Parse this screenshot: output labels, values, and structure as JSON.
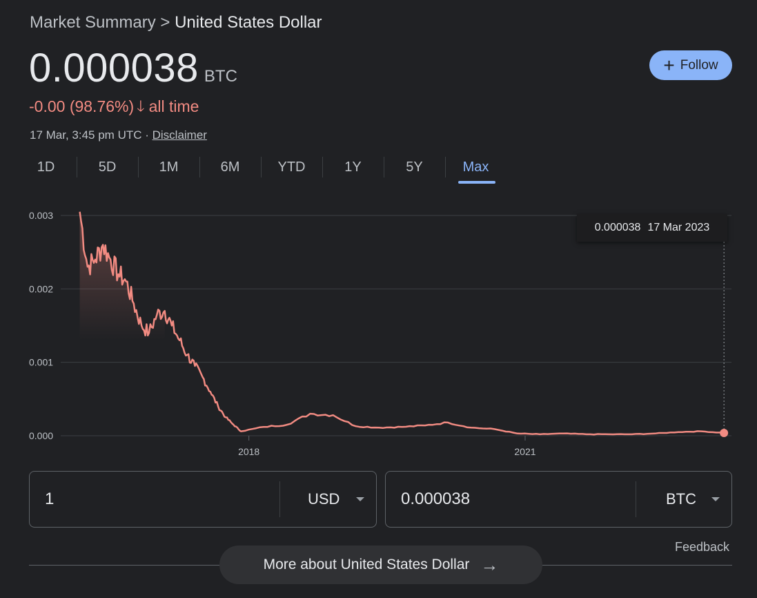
{
  "breadcrumb": {
    "parent": "Market Summary",
    "separator": ">",
    "current": "United States Dollar"
  },
  "quote": {
    "price": "0.000038",
    "unit": "BTC",
    "change_text": "-0.00 (98.76%)",
    "change_period": "all time",
    "timestamp": "17 Mar, 3:45 pm UTC ·",
    "disclaimer": "Disclaimer"
  },
  "follow_button": {
    "icon": "plus-icon",
    "label": "Follow"
  },
  "ranges": [
    {
      "label": "1D",
      "active": false
    },
    {
      "label": "5D",
      "active": false
    },
    {
      "label": "1M",
      "active": false
    },
    {
      "label": "6M",
      "active": false
    },
    {
      "label": "YTD",
      "active": false
    },
    {
      "label": "1Y",
      "active": false
    },
    {
      "label": "5Y",
      "active": false
    },
    {
      "label": "Max",
      "active": true
    }
  ],
  "tooltip": {
    "value": "0.000038",
    "date": "17 Mar 2023"
  },
  "colors": {
    "line": "#f28b82",
    "accent": "#8ab4f8",
    "background": "#202124"
  },
  "chart_data": {
    "type": "line",
    "series": [
      {
        "x": [
          "2016-03",
          "2016-04",
          "2016-05",
          "2016-06",
          "2016-07",
          "2016-08",
          "2016-09",
          "2016-10",
          "2016-11",
          "2016-12",
          "2017-01",
          "2017-02",
          "2017-03",
          "2017-04",
          "2017-05",
          "2017-06",
          "2017-07",
          "2017-08",
          "2017-09",
          "2017-10",
          "2017-11",
          "2017-12",
          "2018-03",
          "2018-06",
          "2018-09",
          "2018-12",
          "2019-03",
          "2019-06",
          "2019-09",
          "2019-12",
          "2020-03",
          "2020-06",
          "2020-09",
          "2020-12",
          "2021-03",
          "2021-06",
          "2021-09",
          "2021-12",
          "2022-03",
          "2022-06",
          "2022-09",
          "2022-12",
          "2023-03"
        ],
        "y": [
          0.00305,
          0.0023,
          0.0024,
          0.0026,
          0.0024,
          0.0022,
          0.0021,
          0.0018,
          0.0015,
          0.0014,
          0.00165,
          0.0017,
          0.0015,
          0.0013,
          0.0011,
          0.00095,
          0.0008,
          0.0006,
          0.0004,
          0.00025,
          0.00015,
          6e-05,
          0.00012,
          0.00015,
          0.0003,
          0.00028,
          0.00013,
          0.00011,
          0.00012,
          0.00014,
          0.00018,
          0.00011,
          9e-05,
          3e-05,
          2e-05,
          3e-05,
          2e-05,
          2e-05,
          2e-05,
          3e-05,
          5e-05,
          6e-05,
          3.8e-05
        ]
      }
    ],
    "y_ticks": [
      "0.003",
      "0.002",
      "0.001",
      "0.000"
    ],
    "x_ticks": [
      "2018",
      "2021"
    ],
    "ylim": [
      0,
      0.003
    ],
    "grid": true
  },
  "converter": {
    "from": {
      "value": "1",
      "currency": "USD"
    },
    "to": {
      "value": "0.000038",
      "currency": "BTC"
    }
  },
  "feedback": "Feedback",
  "more_button": {
    "label": "More about United States Dollar",
    "icon": "arrow-right-icon"
  }
}
